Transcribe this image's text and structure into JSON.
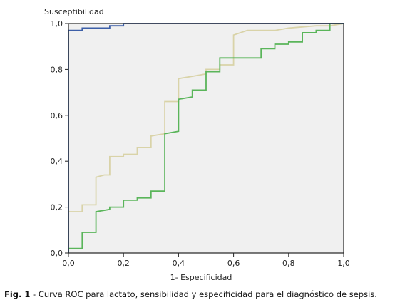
{
  "chart_data": {
    "type": "line",
    "title": "",
    "xlabel": "1- Especificidad",
    "ylabel": "Susceptibilidad",
    "xlim": [
      0,
      1
    ],
    "ylim": [
      0,
      1
    ],
    "xticks": [
      "0,0",
      "0,2",
      "0,4",
      "0,6",
      "0,8",
      "1,0"
    ],
    "yticks": [
      "0,0",
      "0,2",
      "0,4",
      "0,6",
      "0,8",
      "1,0"
    ],
    "xtick_values": [
      0,
      0.2,
      0.4,
      0.6,
      0.8,
      1.0
    ],
    "ytick_values": [
      0,
      0.2,
      0.4,
      0.6,
      0.8,
      1.0
    ],
    "grid": false,
    "plot_background": "#f0f0f0",
    "series": [
      {
        "color": "#d9d3a8",
        "x": [
          0.0,
          0.0,
          0.05,
          0.05,
          0.1,
          0.1,
          0.13,
          0.13,
          0.15,
          0.15,
          0.2,
          0.2,
          0.25,
          0.25,
          0.3,
          0.3,
          0.35,
          0.35,
          0.4,
          0.4,
          0.45,
          0.45,
          0.5,
          0.5,
          0.55,
          0.55,
          0.6,
          0.6,
          0.65,
          0.7,
          0.75,
          0.8,
          0.85,
          0.9,
          0.95,
          1.0
        ],
        "y": [
          0.0,
          0.18,
          0.18,
          0.21,
          0.21,
          0.33,
          0.34,
          0.34,
          0.34,
          0.42,
          0.42,
          0.43,
          0.43,
          0.46,
          0.46,
          0.51,
          0.52,
          0.66,
          0.66,
          0.76,
          0.77,
          0.77,
          0.78,
          0.8,
          0.8,
          0.82,
          0.82,
          0.95,
          0.97,
          0.97,
          0.97,
          0.98,
          0.985,
          0.99,
          0.99,
          1.0
        ]
      },
      {
        "color": "#5ab55a",
        "x": [
          0.0,
          0.0,
          0.05,
          0.05,
          0.1,
          0.1,
          0.15,
          0.15,
          0.2,
          0.2,
          0.25,
          0.25,
          0.3,
          0.3,
          0.35,
          0.35,
          0.4,
          0.4,
          0.45,
          0.45,
          0.5,
          0.5,
          0.55,
          0.55,
          0.7,
          0.7,
          0.75,
          0.75,
          0.8,
          0.8,
          0.85,
          0.85,
          0.9,
          0.9,
          0.95,
          0.95,
          1.0
        ],
        "y": [
          0.0,
          0.02,
          0.02,
          0.09,
          0.09,
          0.18,
          0.19,
          0.2,
          0.2,
          0.23,
          0.23,
          0.24,
          0.24,
          0.27,
          0.27,
          0.52,
          0.53,
          0.67,
          0.68,
          0.71,
          0.71,
          0.79,
          0.79,
          0.85,
          0.85,
          0.89,
          0.89,
          0.91,
          0.91,
          0.92,
          0.92,
          0.96,
          0.96,
          0.97,
          0.97,
          1.0,
          1.0
        ]
      },
      {
        "color": "#3d5fa8",
        "x": [
          0.0,
          0.0,
          0.05,
          0.05,
          0.15,
          0.15,
          0.2,
          0.2,
          1.0
        ],
        "y": [
          0.0,
          0.97,
          0.97,
          0.98,
          0.98,
          0.99,
          0.99,
          1.0,
          1.0
        ]
      }
    ]
  },
  "caption": {
    "label": "Fig. 1",
    "text": " - Curva ROC para lactato, sensibilidad y especificidad para el diagnóstico de sepsis."
  }
}
